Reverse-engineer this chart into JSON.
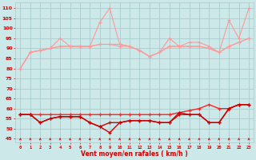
{
  "background_color": "#cde8e8",
  "grid_color": "#aacccc",
  "xlabel": "Vent moyen/en rafales ( km/h )",
  "xlabel_color": "#cc0000",
  "tick_color": "#cc0000",
  "xlim": [
    -0.5,
    23.5
  ],
  "ylim": [
    43,
    113
  ],
  "yticks": [
    45,
    50,
    55,
    60,
    65,
    70,
    75,
    80,
    85,
    90,
    95,
    100,
    105,
    110
  ],
  "x": [
    0,
    1,
    2,
    3,
    4,
    5,
    6,
    7,
    8,
    9,
    10,
    11,
    12,
    13,
    14,
    15,
    16,
    17,
    18,
    19,
    20,
    21,
    22,
    23
  ],
  "rafale1": [
    80,
    88,
    89,
    90,
    95,
    91,
    91,
    91,
    103,
    110,
    92,
    91,
    89,
    86,
    88,
    95,
    91,
    93,
    93,
    91,
    88,
    104,
    95,
    110
  ],
  "rafale2": [
    80,
    88,
    89,
    90,
    91,
    91,
    91,
    91,
    92,
    92,
    92,
    91,
    89,
    86,
    88,
    91,
    91,
    91,
    91,
    90,
    88,
    91,
    93,
    95
  ],
  "rafale3": [
    80,
    88,
    89,
    90,
    91,
    91,
    91,
    91,
    92,
    92,
    91,
    91,
    89,
    86,
    88,
    91,
    91,
    91,
    91,
    90,
    88,
    91,
    93,
    95
  ],
  "vent1": [
    57,
    57,
    57,
    57,
    57,
    57,
    57,
    57,
    57,
    57,
    57,
    57,
    57,
    57,
    57,
    57,
    58,
    59,
    60,
    62,
    60,
    60,
    62,
    62
  ],
  "vent2": [
    57,
    57,
    53,
    55,
    56,
    56,
    56,
    53,
    51,
    53,
    53,
    54,
    54,
    54,
    53,
    53,
    58,
    57,
    57,
    53,
    53,
    60,
    62,
    62
  ],
  "vent3": [
    57,
    57,
    53,
    55,
    56,
    56,
    56,
    53,
    51,
    48,
    53,
    54,
    54,
    54,
    53,
    53,
    57,
    57,
    57,
    53,
    53,
    60,
    62,
    62
  ],
  "lc_pink": "#ff9999",
  "lc_red": "#cc0000",
  "lc_dred": "#ff2222"
}
